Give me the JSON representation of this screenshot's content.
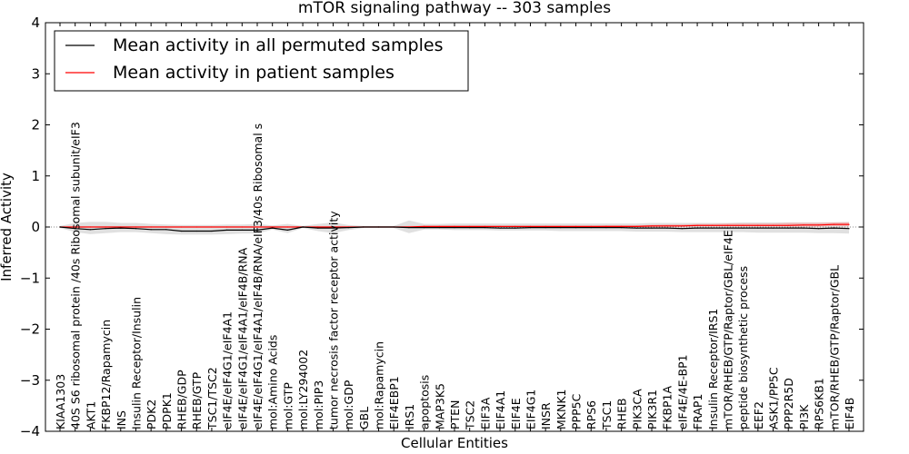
{
  "chart_data": {
    "type": "line",
    "title": "mTOR signaling pathway -- 303 samples",
    "xlabel": "Cellular Entities",
    "ylabel": "Inferred Activity",
    "ylim": [
      -4,
      4
    ],
    "yticks": [
      -4,
      -3,
      -2,
      -1,
      0,
      1,
      2,
      3,
      4
    ],
    "legend_position": "top-left",
    "categories": [
      "KIAA1303",
      "40S S6 ribosomal protein /40s Ribosomal subunit/eIF3",
      "AKT1",
      "FKBP12/Rapamycin",
      "INS",
      "Insulin Receptor/Insulin",
      "PDK2",
      "PDPK1",
      "RHEB/GDP",
      "RHEB/GTP",
      "TSC1/TSC2",
      "eIF4E/eIF4G1/eIF4A1",
      "eIF4E/eIF4G1/eIF4A1/eIF4B/RNA",
      "eIF4E/eIF4G1/eIF4A1/eIF4B/RNA/eIF3/40s Ribosomal s",
      "mol:Amino Acids",
      "mol:GTP",
      "mol:LY294002",
      "mol:PIP3",
      "tumor necrosis factor receptor activity",
      "mol:GDP",
      "GBL",
      "mol:Rapamycin",
      "EIF4EBP1",
      "IRS1",
      "apoptosis",
      "MAP3K5",
      "PTEN",
      "TSC2",
      "EIF3A",
      "EIF4A1",
      "EIF4E",
      "EIF4G1",
      "INSR",
      "MKNK1",
      "PPP5C",
      "RPS6",
      "TSC1",
      "RHEB",
      "PIK3CA",
      "PIK3R1",
      "FKBP1A",
      "eIF4E/4E-BP1",
      "FRAP1",
      "Insulin Receptor/IRS1",
      "mTOR/RHEB/GTP/Raptor/GBL/eIF4E",
      "peptide biosynthetic process",
      "EEF2",
      "ASK1/PP5C",
      "PPP2R5D",
      "PI3K",
      "RPS6KB1",
      "mTOR/RHEB/GTP/Raptor/GBL",
      "EIF4B"
    ],
    "series": [
      {
        "name": "Mean activity in all permuted samples",
        "color": "#000000",
        "values": [
          0.0,
          -0.03,
          -0.05,
          -0.03,
          -0.02,
          -0.03,
          -0.05,
          -0.05,
          -0.08,
          -0.08,
          -0.08,
          -0.06,
          -0.06,
          -0.06,
          -0.02,
          -0.06,
          0.0,
          -0.02,
          -0.02,
          -0.01,
          0.0,
          0.0,
          0.0,
          -0.01,
          -0.01,
          -0.01,
          -0.01,
          -0.01,
          -0.01,
          -0.02,
          -0.02,
          -0.01,
          -0.01,
          -0.01,
          -0.01,
          -0.01,
          -0.01,
          -0.01,
          -0.02,
          -0.02,
          -0.02,
          -0.03,
          -0.02,
          -0.02,
          -0.02,
          -0.02,
          -0.02,
          -0.02,
          -0.02,
          -0.02,
          -0.03,
          -0.02,
          -0.03
        ]
      },
      {
        "name": "Mean activity in patient samples",
        "color": "#ff0000",
        "values": [
          0.0,
          0.0,
          0.0,
          0.0,
          0.0,
          0.0,
          0.0,
          0.0,
          0.0,
          0.0,
          0.0,
          0.0,
          0.0,
          0.0,
          0.0,
          0.0,
          0.0,
          0.0,
          0.0,
          0.0,
          0.0,
          0.0,
          0.0,
          0.0,
          0.01,
          0.01,
          0.01,
          0.01,
          0.01,
          0.01,
          0.01,
          0.01,
          0.01,
          0.01,
          0.01,
          0.01,
          0.01,
          0.01,
          0.01,
          0.02,
          0.02,
          0.02,
          0.03,
          0.03,
          0.03,
          0.03,
          0.03,
          0.03,
          0.03,
          0.04,
          0.04,
          0.05,
          0.05
        ]
      }
    ],
    "bands": [
      {
        "name": "permuted spread",
        "color": "#cccccc",
        "lower": [
          -0.02,
          -0.1,
          -0.14,
          -0.12,
          -0.1,
          -0.1,
          -0.12,
          -0.14,
          -0.15,
          -0.15,
          -0.15,
          -0.14,
          -0.13,
          -0.13,
          -0.05,
          -0.12,
          -0.02,
          -0.08,
          -0.12,
          -0.06,
          -0.02,
          -0.02,
          -0.02,
          -0.12,
          -0.05,
          -0.05,
          -0.06,
          -0.06,
          -0.06,
          -0.07,
          -0.07,
          -0.07,
          -0.07,
          -0.08,
          -0.08,
          -0.08,
          -0.08,
          -0.08,
          -0.09,
          -0.09,
          -0.09,
          -0.1,
          -0.1,
          -0.1,
          -0.1,
          -0.1,
          -0.11,
          -0.11,
          -0.11,
          -0.11,
          -0.12,
          -0.12,
          -0.13
        ],
        "upper": [
          0.02,
          0.08,
          0.1,
          0.1,
          0.08,
          0.08,
          0.06,
          0.05,
          0.04,
          0.04,
          0.04,
          0.05,
          0.05,
          0.06,
          0.03,
          0.06,
          0.02,
          0.06,
          0.09,
          0.04,
          0.02,
          0.02,
          0.02,
          0.13,
          0.06,
          0.06,
          0.07,
          0.07,
          0.07,
          0.07,
          0.07,
          0.07,
          0.07,
          0.07,
          0.07,
          0.07,
          0.07,
          0.07,
          0.07,
          0.08,
          0.08,
          0.08,
          0.08,
          0.08,
          0.08,
          0.09,
          0.09,
          0.09,
          0.09,
          0.09,
          0.09,
          0.09,
          0.1
        ]
      },
      {
        "name": "patient spread",
        "color": "#f5a0a0",
        "lower": [
          0.0,
          0.0,
          0.0,
          0.0,
          0.0,
          0.0,
          0.0,
          0.0,
          0.0,
          0.0,
          0.0,
          0.0,
          0.0,
          0.0,
          0.0,
          0.0,
          0.0,
          0.0,
          0.0,
          0.0,
          0.0,
          0.0,
          0.0,
          0.0,
          0.0,
          0.0,
          0.0,
          0.0,
          0.0,
          0.0,
          0.0,
          0.0,
          0.0,
          0.0,
          0.0,
          0.0,
          0.0,
          0.0,
          0.0,
          0.0,
          0.01,
          0.01,
          0.01,
          0.01,
          0.01,
          0.01,
          0.01,
          0.01,
          0.01,
          0.01,
          0.01,
          0.02,
          0.02
        ],
        "upper": [
          0.0,
          0.01,
          0.01,
          0.01,
          0.01,
          0.01,
          0.01,
          0.01,
          0.01,
          0.01,
          0.01,
          0.01,
          0.01,
          0.01,
          0.01,
          0.01,
          0.01,
          0.01,
          0.01,
          0.01,
          0.01,
          0.01,
          0.01,
          0.02,
          0.02,
          0.02,
          0.02,
          0.02,
          0.02,
          0.02,
          0.02,
          0.02,
          0.02,
          0.02,
          0.02,
          0.02,
          0.03,
          0.03,
          0.03,
          0.04,
          0.05,
          0.05,
          0.06,
          0.06,
          0.07,
          0.07,
          0.07,
          0.07,
          0.08,
          0.08,
          0.08,
          0.09,
          0.09
        ]
      }
    ]
  }
}
